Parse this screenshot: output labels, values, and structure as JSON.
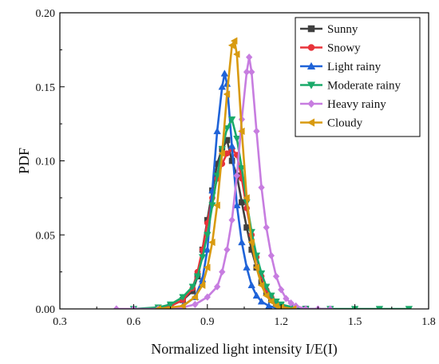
{
  "chart_data": {
    "type": "line",
    "title": "",
    "xlabel": "Normalized light intensity I/E(I)",
    "ylabel": "PDF",
    "xlim": [
      0.3,
      1.8
    ],
    "ylim": [
      0.0,
      0.2
    ],
    "xticks": [
      "0.3",
      "0.6",
      "0.9",
      "1.2",
      "1.5",
      "1.8"
    ],
    "yticks": [
      "0.00",
      "0.05",
      "0.10",
      "0.15",
      "0.20"
    ],
    "grid": false,
    "legend_position": "top-right",
    "series": [
      {
        "name": "Sunny",
        "color": "#404040",
        "marker": "square",
        "x": [
          0.7,
          0.75,
          0.8,
          0.84,
          0.86,
          0.88,
          0.9,
          0.92,
          0.94,
          0.96,
          0.98,
          1.0,
          1.02,
          1.04,
          1.06,
          1.08,
          1.1,
          1.12,
          1.14,
          1.16,
          1.18,
          1.2,
          1.25,
          1.3
        ],
        "y": [
          0.0,
          0.002,
          0.006,
          0.012,
          0.022,
          0.04,
          0.06,
          0.08,
          0.098,
          0.108,
          0.114,
          0.1,
          0.09,
          0.072,
          0.055,
          0.04,
          0.028,
          0.018,
          0.011,
          0.006,
          0.003,
          0.0015,
          0.0,
          0.0
        ]
      },
      {
        "name": "Snowy",
        "color": "#e8333a",
        "marker": "circle",
        "x": [
          0.7,
          0.75,
          0.8,
          0.84,
          0.86,
          0.88,
          0.9,
          0.92,
          0.94,
          0.96,
          0.98,
          1.0,
          1.02,
          1.04,
          1.06,
          1.08,
          1.1,
          1.12,
          1.14,
          1.16,
          1.18,
          1.2,
          1.25,
          1.3
        ],
        "y": [
          0.0,
          0.002,
          0.006,
          0.014,
          0.025,
          0.04,
          0.058,
          0.075,
          0.088,
          0.098,
          0.105,
          0.108,
          0.104,
          0.088,
          0.068,
          0.05,
          0.035,
          0.022,
          0.013,
          0.008,
          0.004,
          0.002,
          0.0,
          0.0
        ]
      },
      {
        "name": "Light rainy",
        "color": "#1f63d8",
        "marker": "triangle-up",
        "x": [
          0.75,
          0.8,
          0.85,
          0.88,
          0.9,
          0.92,
          0.94,
          0.96,
          0.97,
          0.98,
          1.0,
          1.02,
          1.04,
          1.06,
          1.08,
          1.1,
          1.12,
          1.15,
          1.2,
          1.25,
          1.3
        ],
        "y": [
          0.0,
          0.002,
          0.008,
          0.02,
          0.04,
          0.08,
          0.12,
          0.15,
          0.159,
          0.152,
          0.11,
          0.07,
          0.045,
          0.028,
          0.016,
          0.009,
          0.005,
          0.002,
          0.0,
          0.0,
          0.0
        ]
      },
      {
        "name": "Moderate rainy",
        "color": "#1aaa6a",
        "marker": "triangle-down",
        "x": [
          0.6,
          0.7,
          0.75,
          0.8,
          0.84,
          0.86,
          0.88,
          0.9,
          0.92,
          0.94,
          0.96,
          0.98,
          1.0,
          1.02,
          1.04,
          1.06,
          1.08,
          1.1,
          1.12,
          1.14,
          1.16,
          1.18,
          1.2,
          1.25,
          1.3,
          1.4,
          1.5,
          1.6,
          1.72
        ],
        "y": [
          0.0,
          0.001,
          0.003,
          0.008,
          0.015,
          0.022,
          0.035,
          0.05,
          0.07,
          0.09,
          0.108,
          0.122,
          0.128,
          0.115,
          0.095,
          0.072,
          0.052,
          0.036,
          0.024,
          0.015,
          0.009,
          0.005,
          0.003,
          0.001,
          0.0,
          0.0,
          0.0,
          0.0,
          0.0
        ]
      },
      {
        "name": "Heavy rainy",
        "color": "#c77de0",
        "marker": "diamond",
        "x": [
          0.53,
          0.6,
          0.7,
          0.8,
          0.85,
          0.9,
          0.94,
          0.96,
          0.98,
          1.0,
          1.02,
          1.04,
          1.06,
          1.07,
          1.08,
          1.1,
          1.12,
          1.14,
          1.16,
          1.18,
          1.2,
          1.22,
          1.24,
          1.26,
          1.3,
          1.35,
          1.4
        ],
        "y": [
          0.0,
          0.0,
          0.0,
          0.001,
          0.003,
          0.008,
          0.015,
          0.025,
          0.04,
          0.06,
          0.09,
          0.128,
          0.16,
          0.17,
          0.16,
          0.12,
          0.082,
          0.055,
          0.036,
          0.022,
          0.013,
          0.007,
          0.004,
          0.002,
          0.0,
          0.0,
          0.0
        ]
      },
      {
        "name": "Cloudy",
        "color": "#d89a10",
        "marker": "triangle-left",
        "x": [
          0.7,
          0.8,
          0.85,
          0.88,
          0.9,
          0.92,
          0.94,
          0.96,
          0.98,
          1.0,
          1.01,
          1.02,
          1.04,
          1.06,
          1.08,
          1.1,
          1.12,
          1.14,
          1.16,
          1.18,
          1.2,
          1.25
        ],
        "y": [
          0.0,
          0.002,
          0.008,
          0.016,
          0.028,
          0.045,
          0.07,
          0.105,
          0.145,
          0.178,
          0.181,
          0.172,
          0.12,
          0.075,
          0.045,
          0.028,
          0.016,
          0.009,
          0.005,
          0.002,
          0.001,
          0.0
        ]
      }
    ]
  }
}
